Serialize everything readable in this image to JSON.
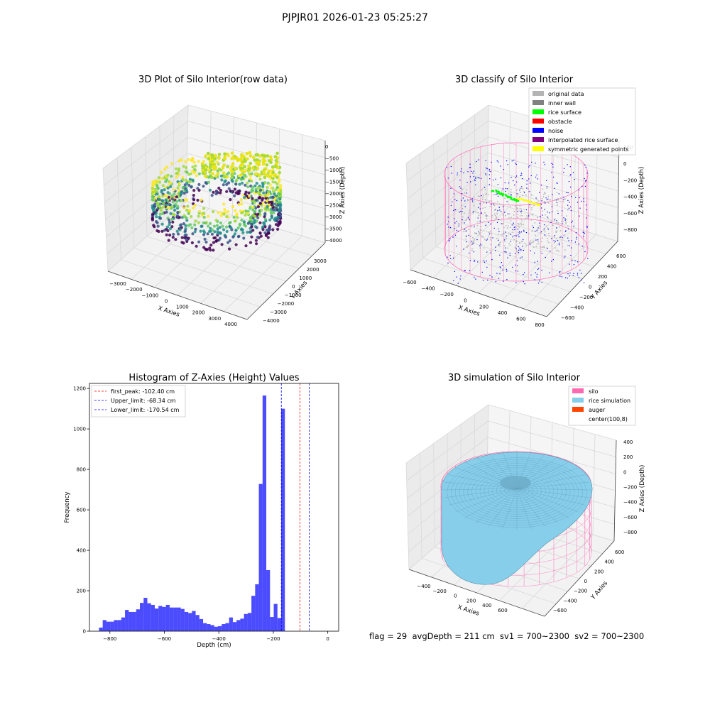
{
  "suptitle": "PJPJR01 2026-01-23 05:25:27",
  "footer": {
    "text": "flag = 29  avgDepth = 211 cm  sv1 = 700~2300  sv2 = 700~2300"
  },
  "colors": {
    "grid": "#d9d9d9",
    "pane": "#f2f2f2",
    "hist_bar": "#0000ff",
    "first_peak_line": "#ff0000",
    "limit_line": "#0000ff",
    "silo_wire": "#ff69b4",
    "rice_surface": "#87ceeb"
  },
  "chart_data": [
    {
      "type": "scatter3d",
      "title": "3D Plot of Silo Interior(row data)",
      "xlabel": "X Axies",
      "ylabel": "Y Axies",
      "zlabel": "Z Axies (Depth)",
      "x_ticks": [
        "−3000",
        "−2000",
        "−1000",
        "0",
        "1000",
        "2000",
        "3000",
        "4000"
      ],
      "y_ticks": [
        "−4000",
        "−3000",
        "−2000",
        "−1000",
        "0",
        "1000",
        "2000",
        "3000"
      ],
      "z_ticks": [
        "0",
        "−500",
        "−1000",
        "−1500",
        "−2000",
        "−2500",
        "−3000",
        "−3500",
        "−4000"
      ],
      "colormap": "viridis"
    },
    {
      "type": "scatter3d",
      "title": "3D classify of Silo Interior",
      "xlabel": "X Axies",
      "ylabel": "Y Axies",
      "zlabel": "Z Axies (Depth)",
      "x_ticks": [
        "−600",
        "−400",
        "−200",
        "0",
        "200",
        "400",
        "600",
        "800"
      ],
      "y_ticks": [
        "−600",
        "−400",
        "−200",
        "0",
        "200",
        "400",
        "600"
      ],
      "z_ticks": [
        "200",
        "0",
        "−200",
        "−400",
        "−600",
        "−800"
      ],
      "legend": [
        {
          "label": "original data",
          "color": "#b4b4b4"
        },
        {
          "label": "inner wall",
          "color": "#808080"
        },
        {
          "label": "rice surface",
          "color": "#00ff00"
        },
        {
          "label": "obstacle",
          "color": "#ff0000"
        },
        {
          "label": "noise",
          "color": "#0000ff"
        },
        {
          "label": "interpolated rice surface",
          "color": "#800080"
        },
        {
          "label": "symmetric generated points",
          "color": "#ffff00"
        }
      ],
      "legend_position": "upper right"
    },
    {
      "type": "bar",
      "title": "Histogram of Z-Axies (Height) Values",
      "xlabel": "Depth (cm)",
      "ylabel": "Frequency",
      "xlim": [
        -875,
        40
      ],
      "ylim": [
        0,
        1225
      ],
      "x_ticks": [
        -800,
        -600,
        -400,
        -200,
        0
      ],
      "x_tick_labels": [
        "−800",
        "−600",
        "−400",
        "−200",
        "0"
      ],
      "y_ticks": [
        0,
        200,
        400,
        600,
        800,
        1000,
        1200
      ],
      "bin_start": -840,
      "bin_width": 13.65,
      "values": [
        18,
        55,
        47,
        47,
        55,
        55,
        68,
        105,
        95,
        95,
        108,
        140,
        165,
        138,
        130,
        112,
        125,
        120,
        130,
        117,
        117,
        117,
        110,
        95,
        90,
        100,
        80,
        60,
        40,
        35,
        30,
        22,
        25,
        35,
        40,
        68,
        45,
        55,
        62,
        85,
        90,
        175,
        232,
        728,
        1165,
        302,
        70,
        135,
        65,
        1100
      ],
      "vlines": [
        {
          "label": "first_peak: -102.40 cm",
          "x": -102.4,
          "color": "#ff0000"
        },
        {
          "label": "Upper_limit: -68.34 cm",
          "x": -68.34,
          "color": "#0000ff"
        },
        {
          "label": "Lower_limit: -170.54 cm",
          "x": -170.54,
          "color": "#0000ff"
        }
      ],
      "legend_position": "upper left",
      "grid": false
    },
    {
      "type": "surface3d",
      "title": "3D simulation of Silo Interior",
      "xlabel": "X Axies",
      "ylabel": "Y Axies",
      "zlabel": "Z Axies (Depth)",
      "x_ticks": [
        "−400",
        "−200",
        "0",
        "200",
        "400",
        "600"
      ],
      "y_ticks": [
        "−600",
        "−400",
        "−200",
        "0",
        "200",
        "400",
        "600"
      ],
      "z_ticks": [
        "400",
        "200",
        "0",
        "−200",
        "−400",
        "−600",
        "−800"
      ],
      "legend": [
        {
          "label": "silo",
          "color": "#ff69b4"
        },
        {
          "label": "rice simulation",
          "color": "#87ceeb"
        },
        {
          "label": "auger",
          "color": "#ff4500"
        },
        {
          "label": "center(100,8)",
          "color": ""
        }
      ],
      "legend_position": "upper right"
    }
  ]
}
